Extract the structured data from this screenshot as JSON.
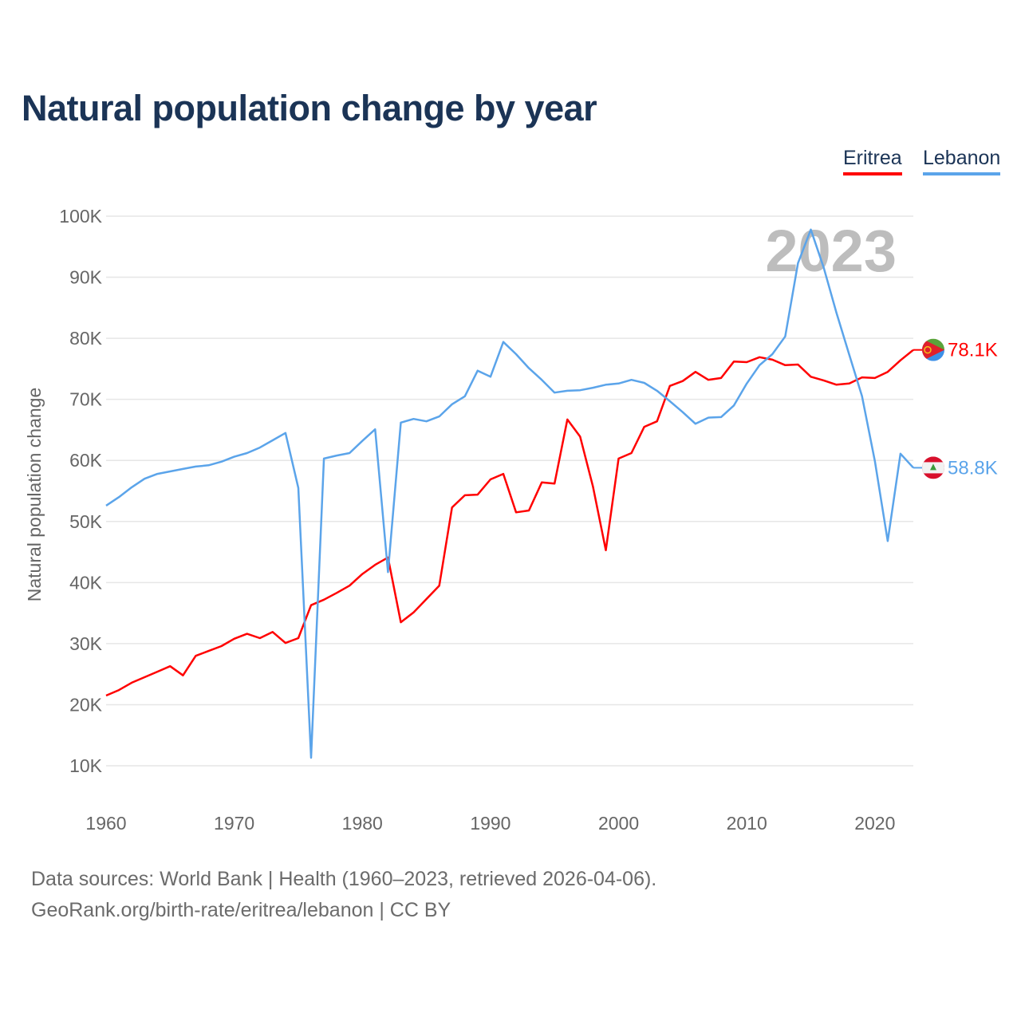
{
  "chart_data": {
    "type": "line",
    "title": "Natural population change by year",
    "xlabel": "",
    "ylabel": "Natural population change",
    "xlim": [
      1960,
      2023
    ],
    "ylim": [
      10000,
      100000
    ],
    "x_ticks": [
      "1960",
      "1970",
      "1980",
      "1990",
      "2000",
      "2010",
      "2020"
    ],
    "y_ticks": [
      "10K",
      "20K",
      "30K",
      "40K",
      "50K",
      "60K",
      "70K",
      "80K",
      "90K",
      "100K"
    ],
    "y_tick_values": [
      10000,
      20000,
      30000,
      40000,
      50000,
      60000,
      70000,
      80000,
      90000,
      100000
    ],
    "x_tick_values": [
      1960,
      1970,
      1980,
      1990,
      2000,
      2010,
      2020
    ],
    "grid": true,
    "legend_position": "top-right",
    "year_watermark": "2023",
    "x": [
      1960,
      1961,
      1962,
      1963,
      1964,
      1965,
      1966,
      1967,
      1968,
      1969,
      1970,
      1971,
      1972,
      1973,
      1974,
      1975,
      1976,
      1977,
      1978,
      1979,
      1980,
      1981,
      1982,
      1983,
      1984,
      1985,
      1986,
      1987,
      1988,
      1989,
      1990,
      1991,
      1992,
      1993,
      1994,
      1995,
      1996,
      1997,
      1998,
      1999,
      2000,
      2001,
      2002,
      2003,
      2004,
      2005,
      2006,
      2007,
      2008,
      2009,
      2010,
      2011,
      2012,
      2013,
      2014,
      2015,
      2016,
      2017,
      2018,
      2019,
      2020,
      2021,
      2022,
      2023
    ],
    "series": [
      {
        "name": "Eritrea",
        "color": "#ff0000",
        "end_label": "78.1K",
        "flag": "eritrea-flag",
        "values": [
          21500,
          22400,
          23600,
          24500,
          25400,
          26300,
          24800,
          28000,
          28800,
          29600,
          30800,
          31600,
          30900,
          31900,
          30100,
          30900,
          36300,
          37200,
          38300,
          39500,
          41400,
          42900,
          44100,
          33500,
          35100,
          37300,
          39500,
          52300,
          54300,
          54400,
          56900,
          57800,
          51500,
          51800,
          56400,
          56200,
          66700,
          63900,
          55700,
          45300,
          60300,
          61200,
          65500,
          66400,
          72200,
          73000,
          74500,
          73200,
          73500,
          76200,
          76100,
          76900,
          76500,
          75600,
          75700,
          73700,
          73100,
          72400,
          72600,
          73600,
          73500,
          74500,
          76400,
          78100
        ]
      },
      {
        "name": "Lebanon",
        "color": "#5ba4ea",
        "end_label": "58.8K",
        "flag": "lebanon-flag",
        "values": [
          52600,
          54000,
          55600,
          57000,
          57800,
          58200,
          58600,
          59000,
          59200,
          59800,
          60600,
          61200,
          62100,
          63300,
          64500,
          55500,
          11300,
          60300,
          60800,
          61200,
          63200,
          65100,
          41700,
          66200,
          66800,
          66400,
          67200,
          69200,
          70500,
          74700,
          73700,
          79400,
          77400,
          75100,
          73200,
          71100,
          71400,
          71500,
          71900,
          72400,
          72600,
          73200,
          72700,
          71400,
          69700,
          67900,
          66000,
          67000,
          67100,
          69000,
          72600,
          75600,
          77400,
          80300,
          92300,
          97800,
          91600,
          84200,
          77300,
          70500,
          59900,
          46800,
          61100,
          58800
        ]
      }
    ]
  },
  "footer": {
    "source": "Data sources: World Bank | Health (1960–2023, retrieved 2026-04-06).",
    "credit": "GeoRank.org/birth-rate/eritrea/lebanon | CC BY"
  }
}
